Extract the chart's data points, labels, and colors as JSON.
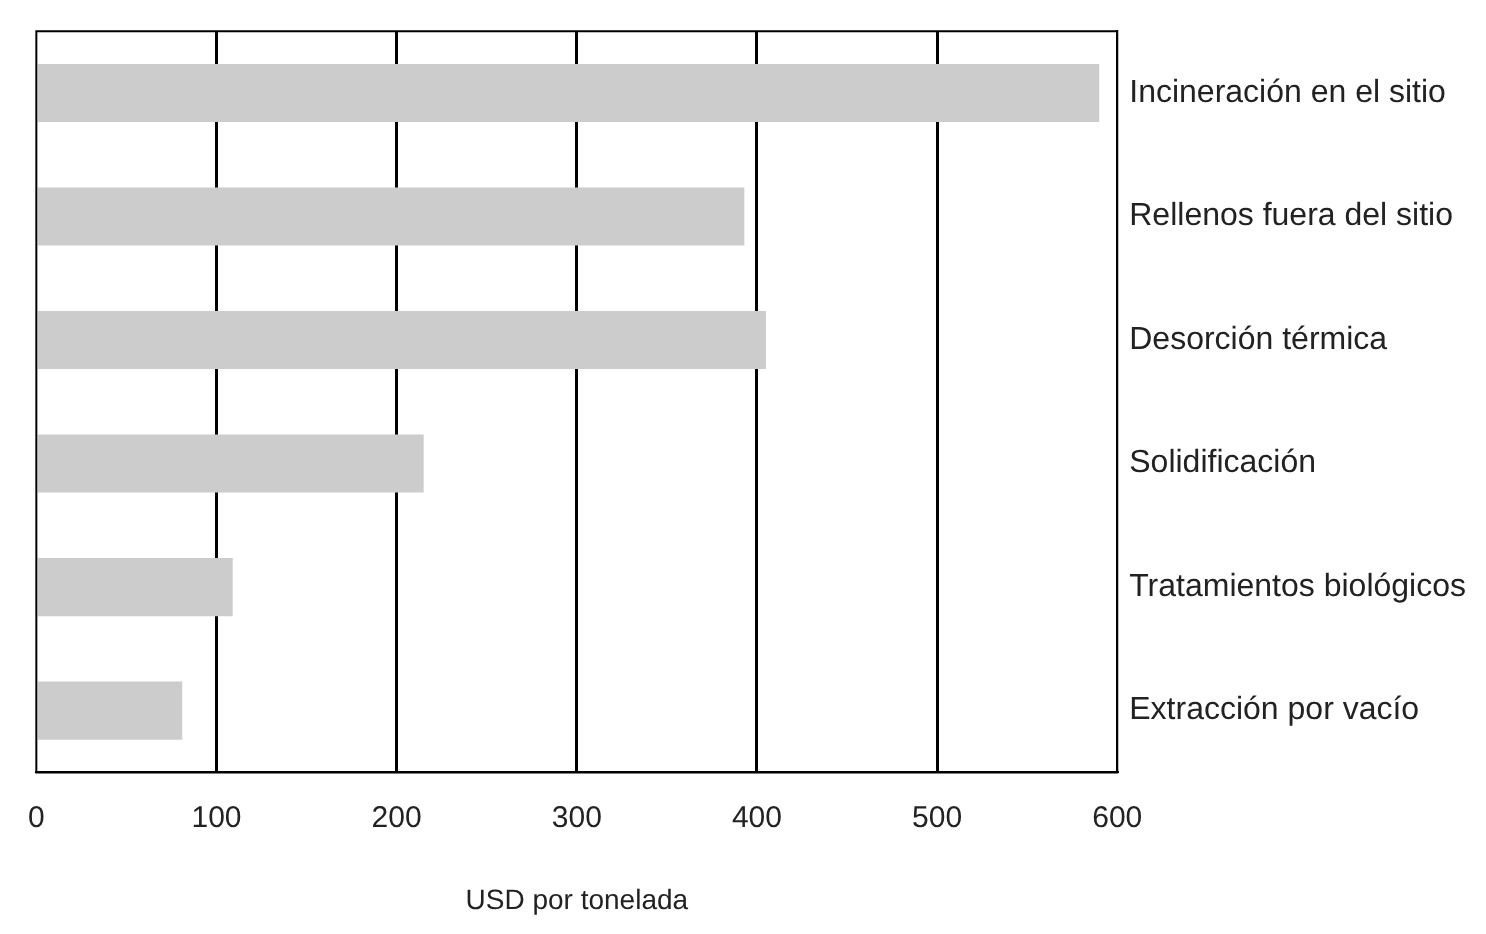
{
  "chart_data": {
    "type": "bar",
    "orientation": "horizontal",
    "xlabel": "USD por tonelada",
    "categories": [
      "Incineración en el sitio",
      "Rellenos fuera del sitio",
      "Desorción térmica",
      "Solidificación",
      "Tratamientos biológicos",
      "Extracción por vacío"
    ],
    "values": [
      590,
      393,
      405,
      215,
      109,
      81
    ],
    "color": "#cccccc",
    "xlim": [
      0,
      600
    ],
    "xticks": [
      0,
      100,
      200,
      300,
      400,
      500,
      600
    ],
    "grid": "x",
    "legend": false
  }
}
